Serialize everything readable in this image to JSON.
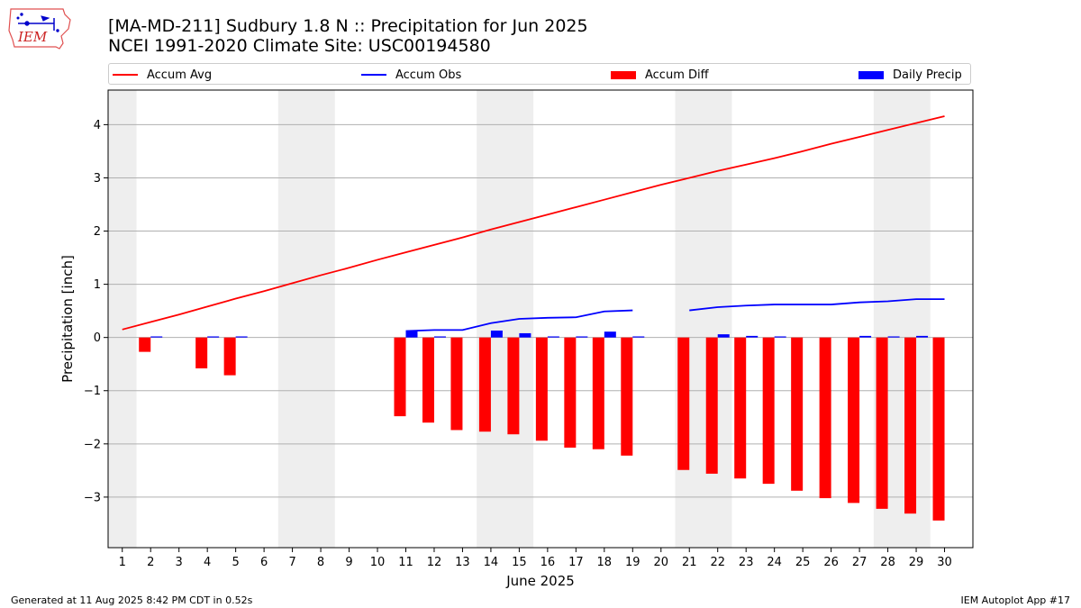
{
  "title": {
    "line1": "[MA-MD-211] Sudbury 1.8 N :: Precipitation for Jun 2025",
    "line2": "NCEI 1991-2020 Climate Site: USC00194580"
  },
  "logo": {
    "text": "IEM",
    "icon": "iem-iowa-logo"
  },
  "legend": [
    {
      "label": "Accum Avg",
      "kind": "line",
      "color": "#ff0000"
    },
    {
      "label": "Accum Obs",
      "kind": "line",
      "color": "#0000ff"
    },
    {
      "label": "Accum Diff",
      "kind": "bar",
      "color": "#ff0000"
    },
    {
      "label": "Daily Precip",
      "kind": "bar",
      "color": "#0000ff"
    }
  ],
  "footer": {
    "left": "Generated at 11 Aug 2025 8:42 PM CDT in 0.52s",
    "right": "IEM Autoplot App #17"
  },
  "chart_data": {
    "type": "bar",
    "xlabel": "June 2025",
    "ylabel": "Precipitation [inch]",
    "xlim": [
      0.5,
      31
    ],
    "ylim": [
      -3.95,
      4.65
    ],
    "x_ticks": [
      1,
      2,
      3,
      4,
      5,
      6,
      7,
      8,
      9,
      10,
      11,
      12,
      13,
      14,
      15,
      16,
      17,
      18,
      19,
      20,
      21,
      22,
      23,
      24,
      25,
      26,
      27,
      28,
      29,
      30
    ],
    "y_ticks": [
      -3,
      -2,
      -1,
      0,
      1,
      2,
      3,
      4
    ],
    "y_tick_labels": [
      "−3",
      "−2",
      "−1",
      "0",
      "1",
      "2",
      "3",
      "4"
    ],
    "grid": "horizontal",
    "legend_position": "top",
    "weekend_shading": [
      [
        0.5,
        1.5
      ],
      [
        6.5,
        8.5
      ],
      [
        13.5,
        15.5
      ],
      [
        20.5,
        22.5
      ],
      [
        27.5,
        29.5
      ]
    ],
    "series": [
      {
        "name": "Accum Avg",
        "type": "line",
        "color": "#ff0000",
        "x": [
          1,
          2,
          3,
          4,
          5,
          6,
          7,
          8,
          9,
          10,
          11,
          12,
          13,
          14,
          15,
          16,
          17,
          18,
          19,
          20,
          21,
          22,
          23,
          24,
          25,
          26,
          27,
          28,
          29,
          30
        ],
        "values": [
          0.15,
          0.29,
          0.43,
          0.58,
          0.73,
          0.87,
          1.02,
          1.17,
          1.31,
          1.46,
          1.6,
          1.74,
          1.88,
          2.03,
          2.17,
          2.31,
          2.45,
          2.59,
          2.73,
          2.87,
          3.0,
          3.13,
          3.25,
          3.37,
          3.5,
          3.64,
          3.77,
          3.9,
          4.03,
          4.16
        ]
      },
      {
        "name": "Accum Obs",
        "type": "line",
        "color": "#0000ff",
        "segments": [
          {
            "x": [
              11,
              12,
              13,
              14,
              15,
              16,
              17,
              18,
              19
            ],
            "values": [
              0.12,
              0.14,
              0.14,
              0.27,
              0.35,
              0.37,
              0.38,
              0.49,
              0.51
            ]
          },
          {
            "x": [
              21,
              22,
              23,
              24,
              25,
              26,
              27,
              28,
              29,
              30
            ],
            "values": [
              0.51,
              0.57,
              0.6,
              0.62,
              0.62,
              0.62,
              0.66,
              0.68,
              0.72,
              0.72
            ]
          }
        ]
      },
      {
        "name": "Accum Diff",
        "type": "bar",
        "color": "#ff0000",
        "x": [
          2,
          4,
          5,
          11,
          12,
          13,
          14,
          15,
          16,
          17,
          18,
          19,
          21,
          22,
          23,
          24,
          25,
          26,
          27,
          28,
          29,
          30
        ],
        "values": [
          -0.27,
          -0.58,
          -0.71,
          -1.48,
          -1.6,
          -1.74,
          -1.77,
          -1.82,
          -1.94,
          -2.07,
          -2.1,
          -2.22,
          -2.49,
          -2.56,
          -2.65,
          -2.75,
          -2.88,
          -3.02,
          -3.11,
          -3.22,
          -3.31,
          -3.44
        ]
      },
      {
        "name": "Daily Precip",
        "type": "bar",
        "color": "#0000ff",
        "x": [
          2,
          4,
          5,
          11,
          12,
          14,
          15,
          16,
          17,
          18,
          19,
          22,
          23,
          24,
          27,
          28,
          29
        ],
        "values": [
          0.01,
          0.02,
          0.02,
          0.12,
          0.01,
          0.13,
          0.08,
          0.01,
          0.01,
          0.11,
          0.01,
          0.06,
          0.03,
          0.01,
          0.03,
          0.01,
          0.03
        ]
      }
    ]
  }
}
